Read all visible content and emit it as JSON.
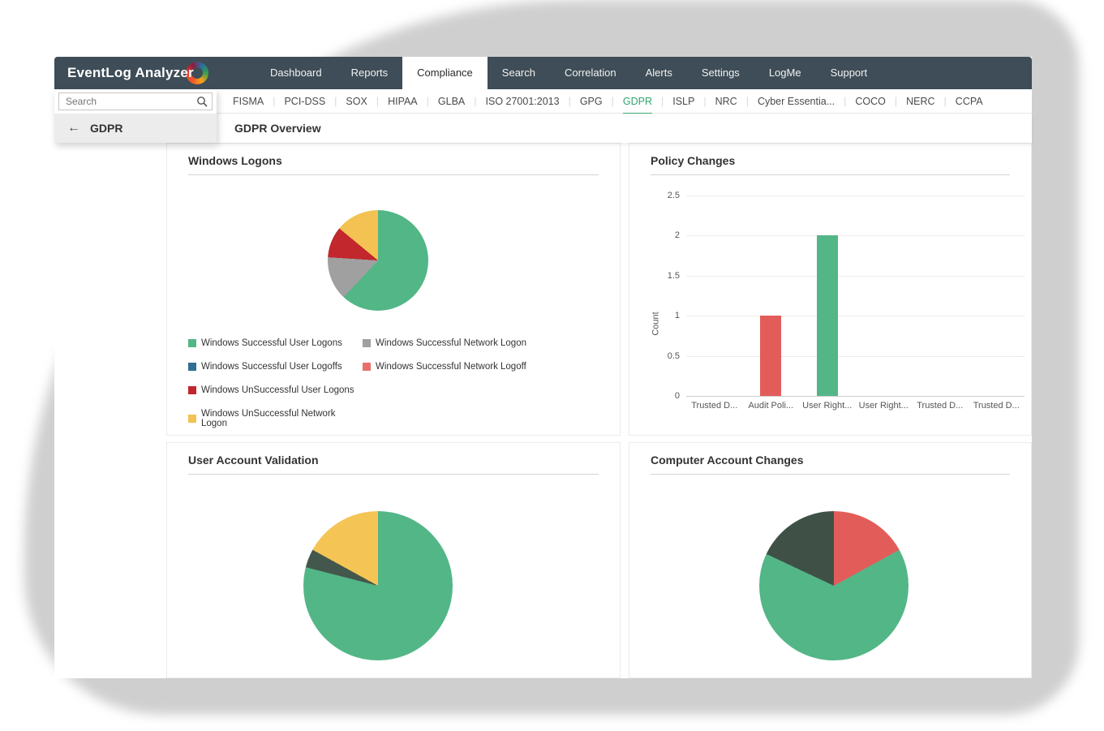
{
  "app": {
    "logo": "EventLog Analyzer"
  },
  "colors": {
    "navbar": "#3e4d57",
    "accent_green": "#3fa874",
    "bar_red": "#e25d5a",
    "bar_green": "#53b687"
  },
  "nav": {
    "items": [
      "Dashboard",
      "Reports",
      "Compliance",
      "Search",
      "Correlation",
      "Alerts",
      "Settings",
      "LogMe",
      "Support"
    ],
    "active": "Compliance"
  },
  "compliance_tabs": {
    "items": [
      "FISMA",
      "PCI-DSS",
      "SOX",
      "HIPAA",
      "GLBA",
      "ISO 27001:2013",
      "GPG",
      "GDPR",
      "ISLP",
      "NRC",
      "Cyber Essentia...",
      "COCO",
      "NERC",
      "CCPA"
    ],
    "active": "GDPR"
  },
  "sidebar": {
    "search_placeholder": "Search",
    "back_icon": "←",
    "item_label": "GDPR"
  },
  "page": {
    "title": "GDPR Overview"
  },
  "chart_data": [
    {
      "id": "windows_logons",
      "type": "pie",
      "title": "Windows Logons",
      "legend_position": "bottom-left",
      "slices": [
        {
          "label": "Windows Successful User Logons",
          "value": 62,
          "color": "#53b687"
        },
        {
          "label": "Windows Successful Network Logon",
          "value": 14,
          "color": "#a0a0a0"
        },
        {
          "label": "Windows Successful User Logoffs",
          "value": 0,
          "color": "#2f6f92"
        },
        {
          "label": "Windows Successful Network Logoff",
          "value": 0,
          "color": "#e8706a"
        },
        {
          "label": "Windows UnSuccessful User Logons",
          "value": 10,
          "color": "#c1272d"
        },
        {
          "label": "Windows UnSuccessful Network Logon",
          "value": 14,
          "color": "#f3c252"
        }
      ]
    },
    {
      "id": "policy_changes",
      "type": "bar",
      "title": "Policy Changes",
      "ylabel": "Count",
      "ylim": [
        0,
        2.5
      ],
      "yticks": [
        0,
        0.5,
        1,
        1.5,
        2,
        2.5
      ],
      "grid": true,
      "categories": [
        "Trusted D...",
        "Audit Poli...",
        "User Right...",
        "User Right...",
        "Trusted D...",
        "Trusted D..."
      ],
      "values": [
        0,
        1,
        2,
        0,
        0,
        0
      ],
      "bar_colors": [
        "#53b687",
        "#e25d5a",
        "#53b687",
        "#53b687",
        "#53b687",
        "#53b687"
      ]
    },
    {
      "id": "user_account_validation",
      "type": "pie",
      "title": "User Account Validation",
      "slices": [
        {
          "label": "",
          "value": 79,
          "color": "#53b687"
        },
        {
          "label": "",
          "value": 4,
          "color": "#44574c"
        },
        {
          "label": "",
          "value": 17,
          "color": "#f4c455"
        }
      ]
    },
    {
      "id": "computer_account_changes",
      "type": "pie",
      "title": "Computer Account Changes",
      "slices": [
        {
          "label": "",
          "value": 17,
          "color": "#e25d5a"
        },
        {
          "label": "",
          "value": 65,
          "color": "#53b687"
        },
        {
          "label": "",
          "value": 18,
          "color": "#3f5147"
        }
      ]
    }
  ]
}
